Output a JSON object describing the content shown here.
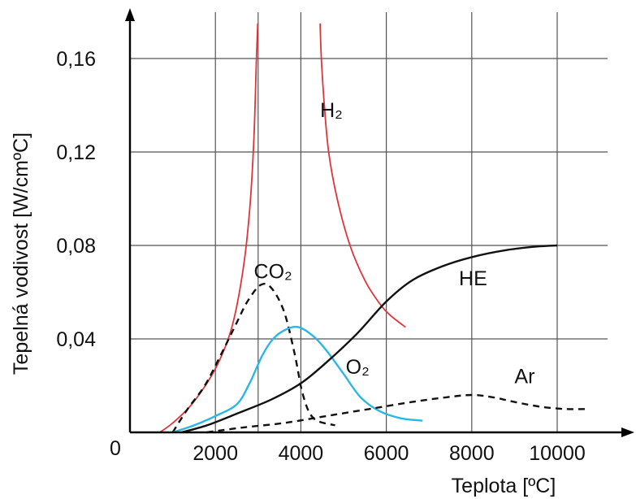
{
  "chart_data": {
    "type": "line",
    "xlabel": "Teplota [ºC]",
    "ylabel": "Tepelná vodivost  [W/cmºC]",
    "xlim": [
      0,
      11000
    ],
    "ylim": [
      0,
      0.17
    ],
    "origin_label": "0",
    "x_ticks": [
      {
        "value": 2000,
        "label": "2000"
      },
      {
        "value": 4000,
        "label": "4000"
      },
      {
        "value": 6000,
        "label": "6000"
      },
      {
        "value": 8000,
        "label": "8000"
      },
      {
        "value": 10000,
        "label": "10000"
      }
    ],
    "y_ticks": [
      {
        "value": 0.04,
        "label": "0,04"
      },
      {
        "value": 0.08,
        "label": "0,08"
      },
      {
        "value": 0.12,
        "label": "0,12"
      },
      {
        "value": 0.16,
        "label": "0,16"
      }
    ],
    "x_grid": [
      2000,
      3000,
      4000,
      6000,
      8000,
      10000
    ],
    "grid": true,
    "series": [
      {
        "name": "H₂",
        "color": "#e0343a",
        "dash": "solid",
        "label_at": [
          4450,
          0.135
        ],
        "segments": [
          [
            [
              700,
              0.0
            ],
            [
              1000,
              0.004
            ],
            [
              1400,
              0.011
            ],
            [
              1800,
              0.021
            ],
            [
              2100,
              0.031
            ],
            [
              2400,
              0.046
            ],
            [
              2650,
              0.07
            ],
            [
              2800,
              0.095
            ],
            [
              2900,
              0.125
            ],
            [
              2960,
              0.16
            ],
            [
              2990,
              0.175
            ]
          ],
          [
            [
              4450,
              0.175
            ],
            [
              4480,
              0.16
            ],
            [
              4550,
              0.14
            ],
            [
              4650,
              0.12
            ],
            [
              4850,
              0.1
            ],
            [
              5150,
              0.08
            ],
            [
              5500,
              0.065
            ],
            [
              5850,
              0.055
            ],
            [
              6100,
              0.05
            ],
            [
              6450,
              0.045
            ]
          ]
        ]
      },
      {
        "name": "CO₂",
        "color": "#111111",
        "dash": "dashed",
        "label_at": [
          2900,
          0.066
        ],
        "segments": [
          [
            [
              1000,
              0.0
            ],
            [
              1350,
              0.01
            ],
            [
              1750,
              0.02
            ],
            [
              2150,
              0.034
            ],
            [
              2500,
              0.047
            ],
            [
              2750,
              0.056
            ],
            [
              3050,
              0.063
            ],
            [
              3300,
              0.062
            ],
            [
              3600,
              0.052
            ],
            [
              3850,
              0.034
            ],
            [
              4050,
              0.016
            ],
            [
              4300,
              0.006
            ],
            [
              4800,
              0.003
            ]
          ]
        ]
      },
      {
        "name": "O₂",
        "color": "#29b7e6",
        "dash": "solid",
        "label_at": [
          5050,
          0.025
        ],
        "segments": [
          [
            [
              1000,
              0.0
            ],
            [
              1500,
              0.003
            ],
            [
              2000,
              0.007
            ],
            [
              2500,
              0.012
            ],
            [
              2800,
              0.021
            ],
            [
              3100,
              0.033
            ],
            [
              3350,
              0.04
            ],
            [
              3650,
              0.044
            ],
            [
              3950,
              0.045
            ],
            [
              4300,
              0.041
            ],
            [
              4600,
              0.035
            ],
            [
              5000,
              0.025
            ],
            [
              5400,
              0.015
            ],
            [
              5850,
              0.009
            ],
            [
              6350,
              0.006
            ],
            [
              6850,
              0.005
            ]
          ]
        ]
      },
      {
        "name": "HE",
        "color": "#111111",
        "dash": "solid",
        "label_at": [
          7700,
          0.063
        ],
        "segments": [
          [
            [
              1200,
              0.0
            ],
            [
              1800,
              0.003
            ],
            [
              2500,
              0.008
            ],
            [
              3300,
              0.014
            ],
            [
              4000,
              0.021
            ],
            [
              4600,
              0.03
            ],
            [
              5300,
              0.042
            ],
            [
              6000,
              0.056
            ],
            [
              6600,
              0.065
            ],
            [
              7300,
              0.071
            ],
            [
              8000,
              0.075
            ],
            [
              8800,
              0.078
            ],
            [
              9500,
              0.0795
            ],
            [
              10000,
              0.08
            ]
          ]
        ]
      },
      {
        "name": "Ar",
        "color": "#111111",
        "dash": "dashed",
        "label_at": [
          9000,
          0.021
        ],
        "segments": [
          [
            [
              1800,
              0.0
            ],
            [
              2600,
              0.002
            ],
            [
              3600,
              0.004
            ],
            [
              4600,
              0.007
            ],
            [
              5600,
              0.01
            ],
            [
              6600,
              0.013
            ],
            [
              7400,
              0.015
            ],
            [
              8000,
              0.016
            ],
            [
              8500,
              0.015
            ],
            [
              9000,
              0.013
            ],
            [
              9600,
              0.011
            ],
            [
              10200,
              0.01
            ],
            [
              10700,
              0.01
            ]
          ]
        ]
      }
    ]
  }
}
